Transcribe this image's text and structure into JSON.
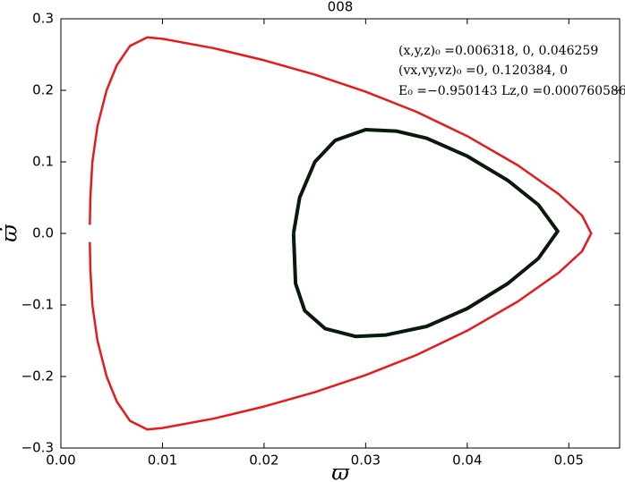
{
  "chart_data": {
    "type": "line",
    "title": "008",
    "x_label": "ϖ",
    "y_label": "ϖ̇",
    "annotations": [
      "(x,y,z)₀ =0.006318, 0, 0.046259",
      "(vx,vy,vz)₀ =0, 0.120384, 0",
      "E₀ =−0.950143  Lz,0 =0.000760586"
    ],
    "xlim": [
      0,
      0.055
    ],
    "ylim": [
      -0.3,
      0.3
    ],
    "xticks": [
      {
        "value": 0,
        "label": "0.00"
      },
      {
        "value": 0.01,
        "label": "0.01"
      },
      {
        "value": 0.02,
        "label": "0.02"
      },
      {
        "value": 0.03,
        "label": "0.03"
      },
      {
        "value": 0.04,
        "label": "0.04"
      },
      {
        "value": 0.05,
        "label": "0.05"
      }
    ],
    "yticks": [
      {
        "value": -0.3,
        "label": "−0.3"
      },
      {
        "value": -0.2,
        "label": "−0.2"
      },
      {
        "value": -0.1,
        "label": "−0.1"
      },
      {
        "value": 0,
        "label": "0.0"
      },
      {
        "value": 0.1,
        "label": "0.1"
      },
      {
        "value": 0.2,
        "label": "0.2"
      },
      {
        "value": 0.3,
        "label": "0.3"
      }
    ],
    "grid": false,
    "series": [
      {
        "color": "#e41a1c",
        "line_width": 2.5,
        "x": [
          0.00285,
          0.0029,
          0.0031,
          0.0036,
          0.0045,
          0.0055,
          0.0068,
          0.0085,
          0.01,
          0.015,
          0.02,
          0.025,
          0.03,
          0.035,
          0.04,
          0.045,
          0.049,
          0.0513,
          0.0522,
          0.0513,
          0.049,
          0.045,
          0.04,
          0.035,
          0.03,
          0.025,
          0.02,
          0.015,
          0.01,
          0.0085,
          0.0068,
          0.0055,
          0.0045,
          0.0036,
          0.0031,
          0.0029,
          0.00285
        ],
        "values": [
          0.012,
          0.05,
          0.1,
          0.15,
          0.2,
          0.235,
          0.262,
          0.274,
          0.272,
          0.259,
          0.242,
          0.222,
          0.198,
          0.17,
          0.136,
          0.095,
          0.055,
          0.025,
          0.0,
          -0.025,
          -0.055,
          -0.095,
          -0.136,
          -0.17,
          -0.198,
          -0.222,
          -0.242,
          -0.259,
          -0.272,
          -0.274,
          -0.262,
          -0.235,
          -0.2,
          -0.15,
          -0.1,
          -0.05,
          -0.012
        ]
      },
      {
        "color": "#0a1a0a",
        "line_width": 4,
        "x": [
          0.0229,
          0.0235,
          0.025,
          0.027,
          0.03,
          0.033,
          0.036,
          0.04,
          0.044,
          0.047,
          0.0489,
          0.047,
          0.044,
          0.04,
          0.036,
          0.032,
          0.029,
          0.026,
          0.024,
          0.0231,
          0.0229
        ],
        "values": [
          0.0,
          0.05,
          0.1,
          0.13,
          0.145,
          0.143,
          0.133,
          0.108,
          0.074,
          0.04,
          0.003,
          -0.035,
          -0.07,
          -0.105,
          -0.13,
          -0.142,
          -0.144,
          -0.133,
          -0.108,
          -0.07,
          0.0
        ]
      }
    ]
  }
}
